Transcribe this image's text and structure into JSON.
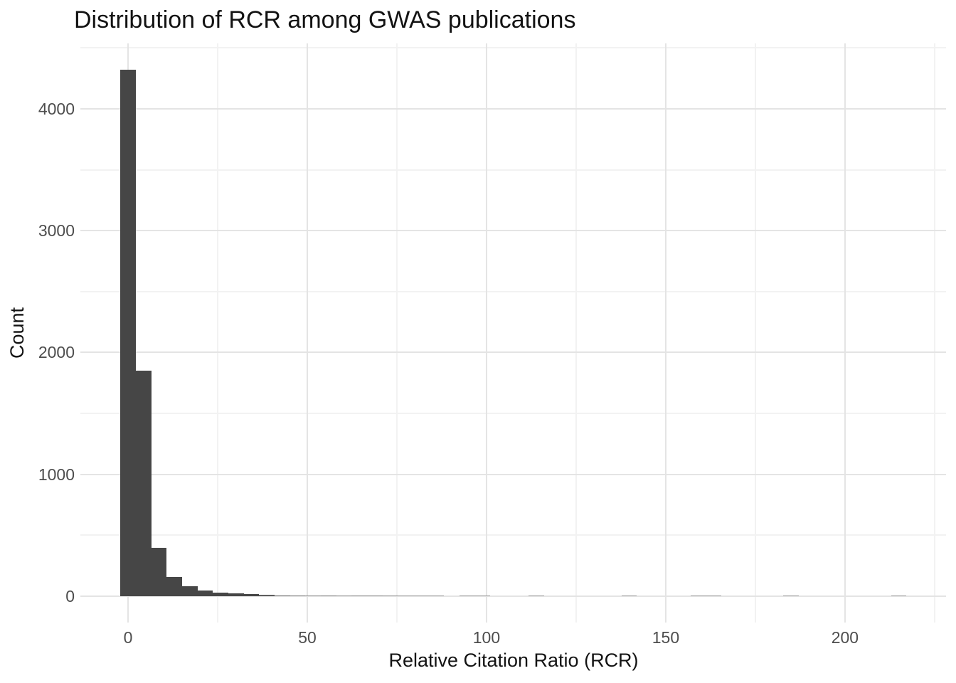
{
  "page": {
    "background": "#FFFFFF"
  },
  "chart_data": {
    "type": "bar",
    "subtype": "histogram",
    "title": "Distribution of RCR among GWAS publications",
    "xlabel": "Relative Citation Ratio (RCR)",
    "ylabel": "Count",
    "legend_position": "none",
    "grid": true,
    "bin_width": 4.3,
    "bins_center_count": [
      [
        0,
        4320
      ],
      [
        4.3,
        1850
      ],
      [
        8.6,
        400
      ],
      [
        12.9,
        160
      ],
      [
        17.2,
        80
      ],
      [
        21.5,
        47
      ],
      [
        25.8,
        31
      ],
      [
        30.1,
        22
      ],
      [
        34.4,
        16
      ],
      [
        38.7,
        10
      ],
      [
        43,
        8
      ],
      [
        47.3,
        5
      ],
      [
        51.6,
        3
      ],
      [
        55.9,
        4
      ],
      [
        60.2,
        2
      ],
      [
        64.5,
        3
      ],
      [
        68.8,
        3
      ],
      [
        73.1,
        2
      ],
      [
        77.4,
        1
      ],
      [
        81.7,
        1
      ],
      [
        86,
        1
      ],
      [
        94.6,
        1
      ],
      [
        98.9,
        1
      ],
      [
        113.9,
        1
      ],
      [
        139.8,
        1
      ],
      [
        159.1,
        1
      ],
      [
        163.4,
        1
      ],
      [
        184.9,
        1
      ],
      [
        215,
        1
      ]
    ],
    "x_ticks": [
      0,
      50,
      100,
      150,
      200
    ],
    "x_minor_ticks": [
      25,
      75,
      125,
      175,
      225
    ],
    "y_ticks": [
      0,
      1000,
      2000,
      3000,
      4000
    ],
    "y_minor_ticks": [
      500,
      1500,
      2500,
      3500,
      4500
    ],
    "xlim": [
      -13.3,
      228.2
    ],
    "ylim": [
      -216,
      4537
    ],
    "colors": {
      "bar": "#464646",
      "grid_major": "#E4E4E4",
      "grid_minor": "#F2F2F2",
      "tick_label": "#4D4D4D",
      "axis_title": "#131313",
      "title": "#131313",
      "background": "#FFFFFF"
    }
  }
}
